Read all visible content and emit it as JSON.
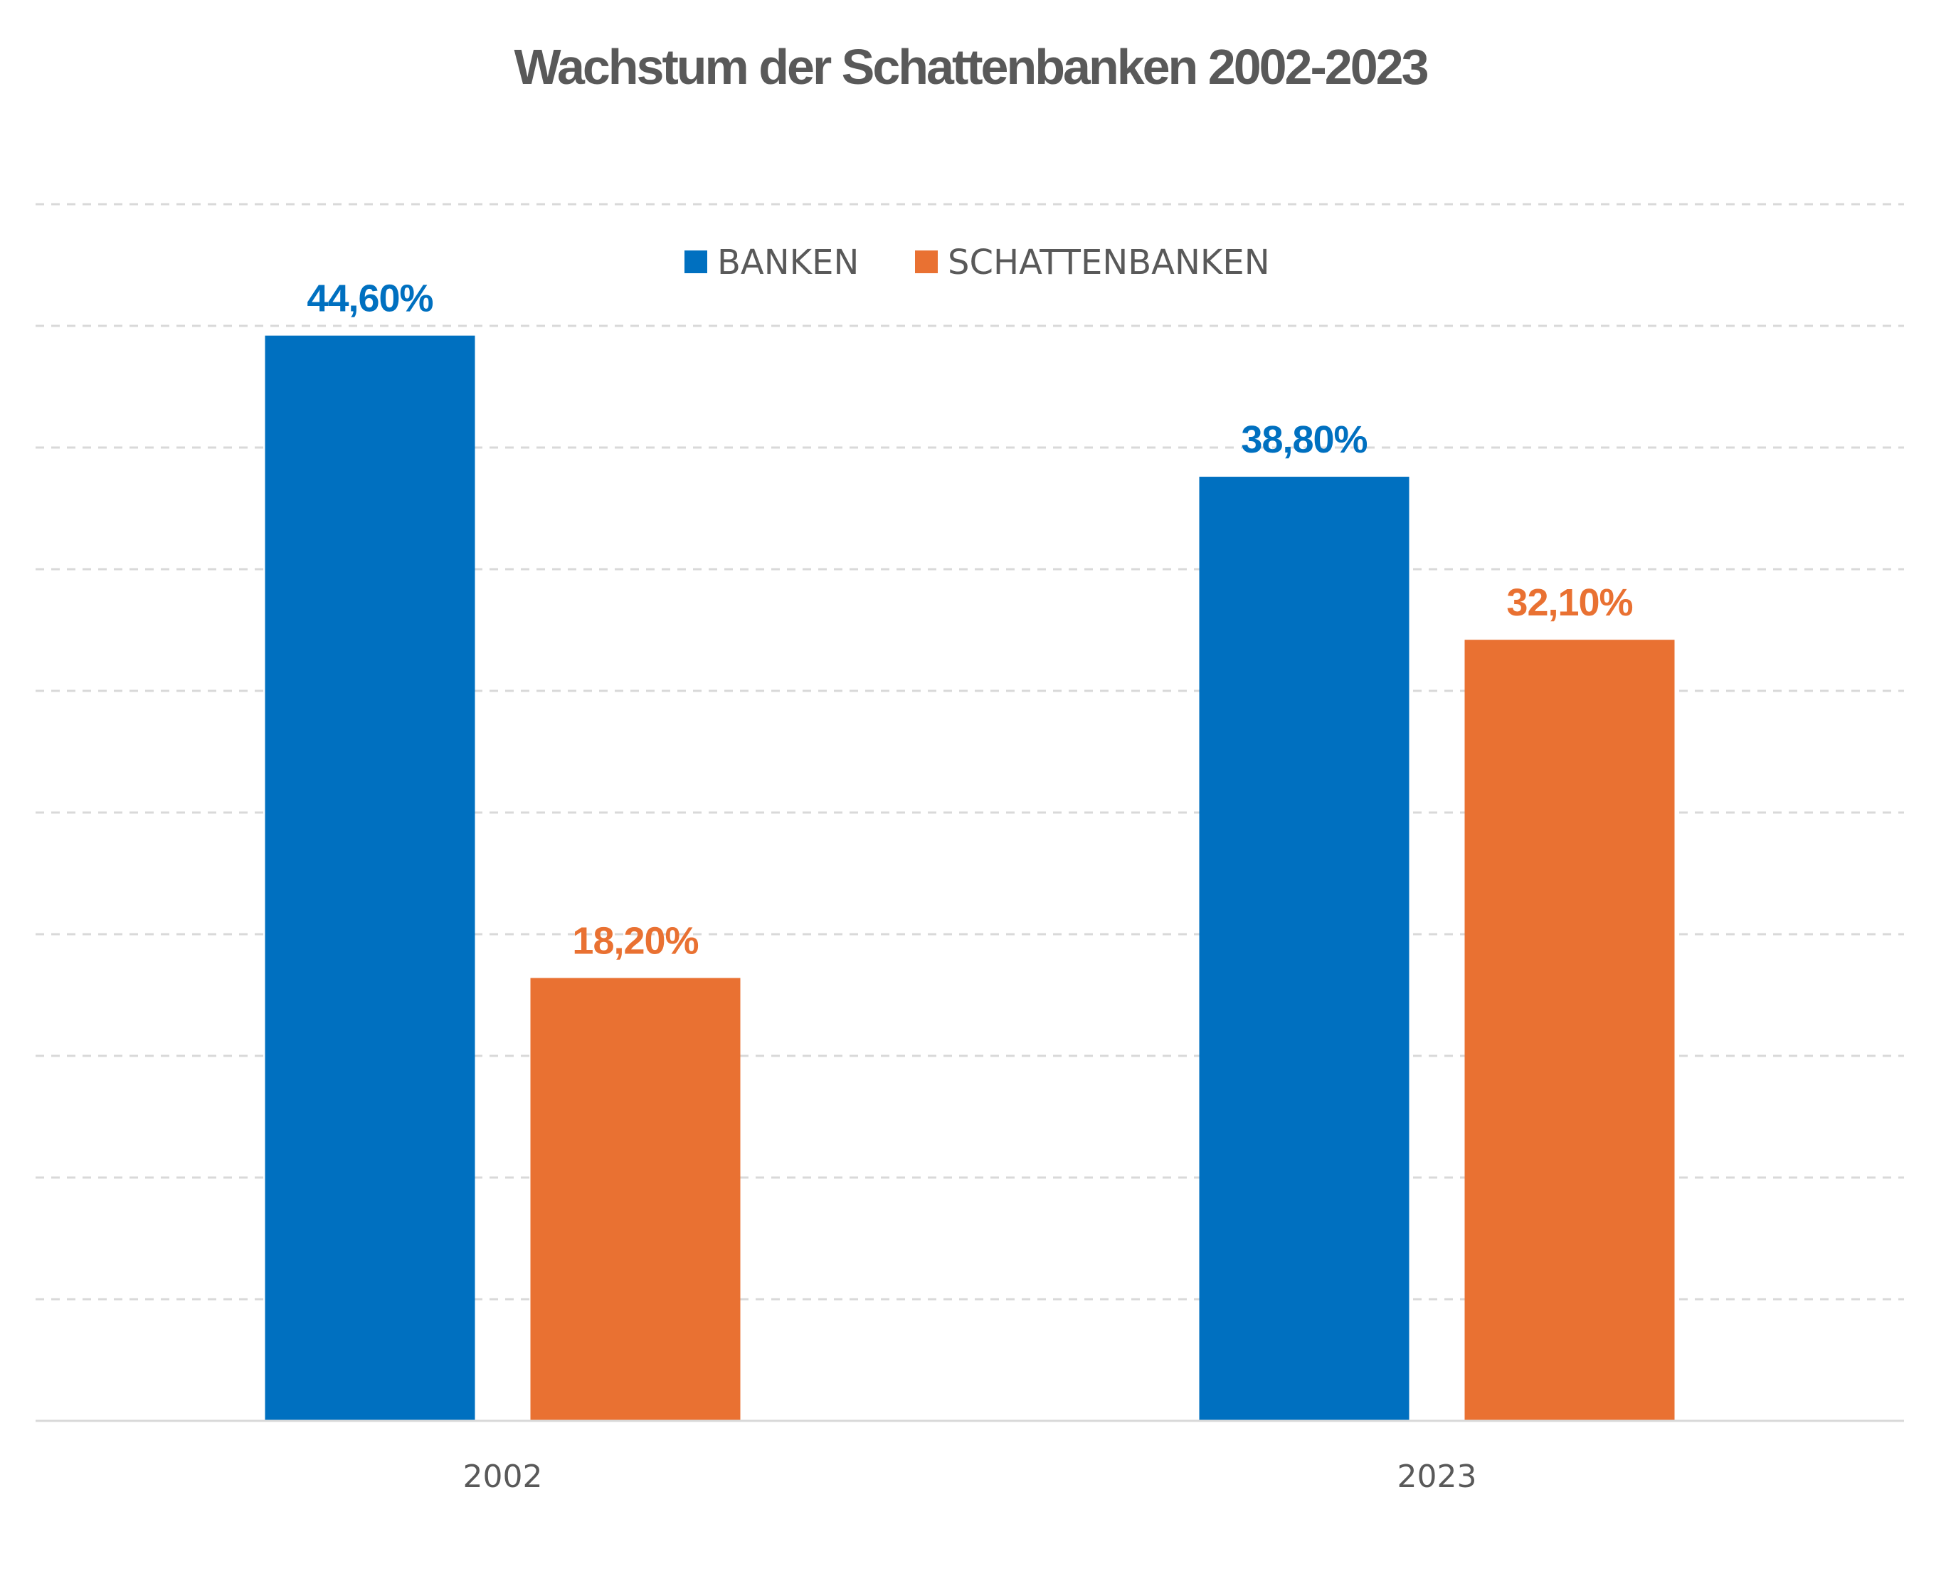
{
  "chart_data": {
    "type": "bar",
    "title": "Wachstum der Schattenbanken 2002-2023",
    "categories": [
      "2002",
      "2023"
    ],
    "series": [
      {
        "name": "BANKEN",
        "color": "#0070C0",
        "values": [
          44.6,
          38.8
        ],
        "labels": [
          "44,60%",
          "38,80%"
        ]
      },
      {
        "name": "SCHATTENBANKEN",
        "color": "#E97132",
        "values": [
          18.2,
          32.1
        ],
        "labels": [
          "18,20%",
          "32,10%"
        ]
      }
    ],
    "xlabel": "",
    "ylabel": "",
    "ylim": [
      0,
      50
    ],
    "ytick_step": 5,
    "grid": true,
    "legend_position": "top-center",
    "y_tick_labels_visible": false
  }
}
